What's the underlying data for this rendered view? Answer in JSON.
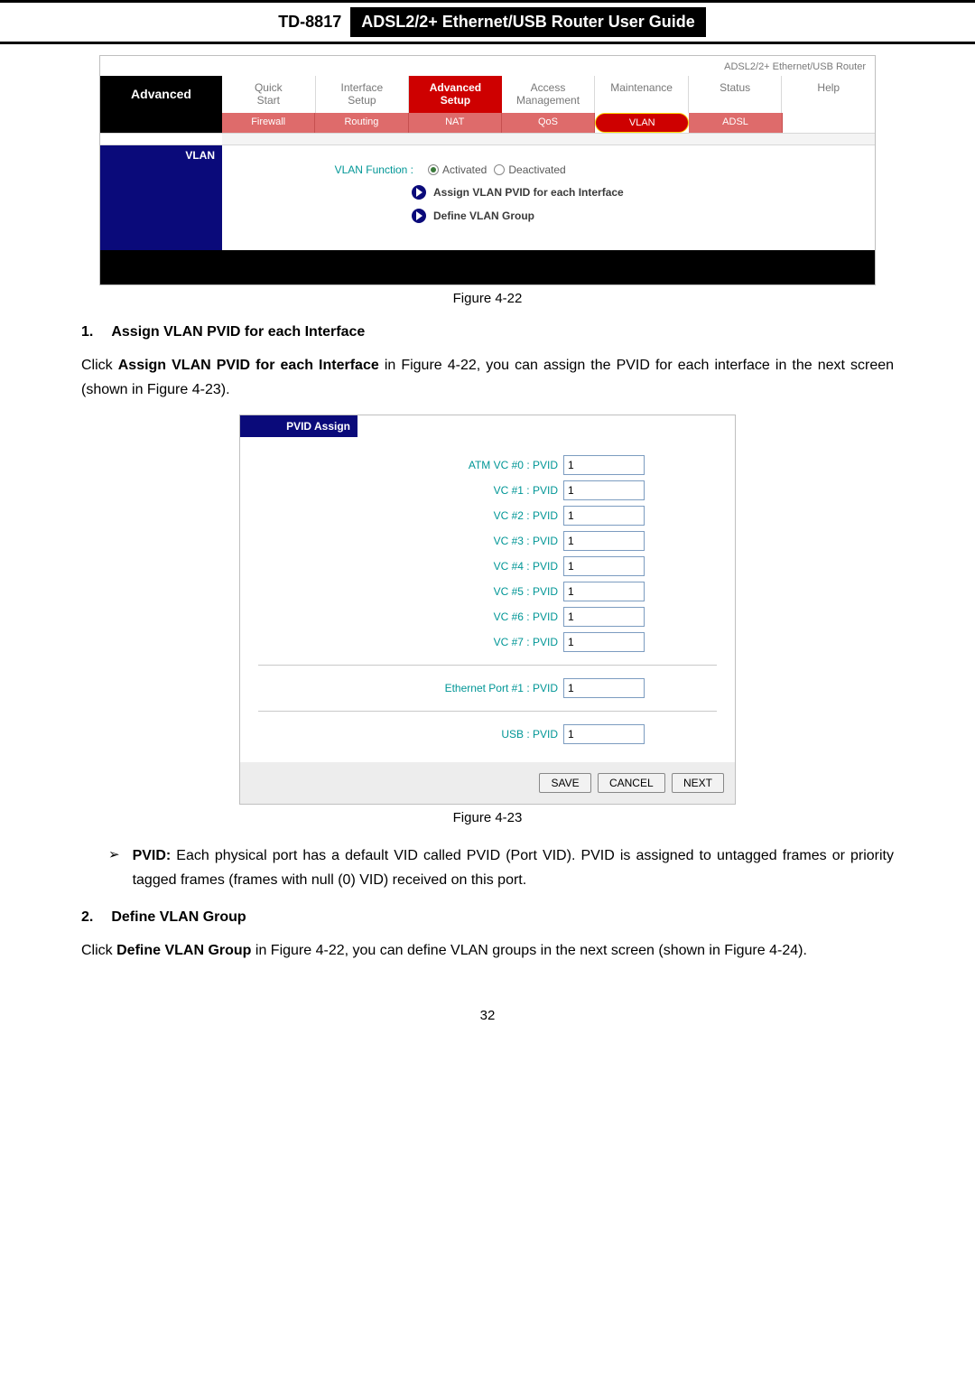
{
  "header": {
    "model": "TD-8817",
    "title": "ADSL2/2+ Ethernet/USB Router User Guide"
  },
  "screenshot1": {
    "brand": "ADSL2/2+ Ethernet/USB Router",
    "sidebar_title": "Advanced",
    "tabs": [
      "Quick\nStart",
      "Interface\nSetup",
      "Advanced\nSetup",
      "Access\nManagement",
      "Maintenance",
      "Status",
      "Help"
    ],
    "active_tab_index": 2,
    "subtabs": [
      "Firewall",
      "Routing",
      "NAT",
      "QoS",
      "VLAN",
      "ADSL"
    ],
    "active_subtab_index": 4,
    "section_label": "VLAN",
    "vlan_function_label": "VLAN Function :",
    "radio_activated": "Activated",
    "radio_deactivated": "Deactivated",
    "link1": "Assign VLAN PVID for each Interface",
    "link2": "Define VLAN Group"
  },
  "fig1_caption": "Figure 4-22",
  "h1_num": "1.",
  "h1_text": "Assign VLAN PVID for each Interface",
  "p1_a": "Click ",
  "p1_b": "Assign VLAN PVID for each Interface",
  "p1_c": " in Figure 4-22, you can assign the PVID for each interface in the next screen (shown in Figure 4-23).",
  "screenshot2": {
    "header": "PVID Assign",
    "rows": [
      {
        "label": "ATM VC #0 : PVID",
        "value": "1"
      },
      {
        "label": "VC #1 : PVID",
        "value": "1"
      },
      {
        "label": "VC #2 : PVID",
        "value": "1"
      },
      {
        "label": "VC #3 : PVID",
        "value": "1"
      },
      {
        "label": "VC #4 : PVID",
        "value": "1"
      },
      {
        "label": "VC #5 : PVID",
        "value": "1"
      },
      {
        "label": "VC #6 : PVID",
        "value": "1"
      },
      {
        "label": "VC #7 : PVID",
        "value": "1"
      }
    ],
    "eth_row": {
      "label": "Ethernet Port #1 : PVID",
      "value": "1"
    },
    "usb_row": {
      "label": "USB : PVID",
      "value": "1"
    },
    "buttons": [
      "SAVE",
      "CANCEL",
      "NEXT"
    ]
  },
  "fig2_caption": "Figure 4-23",
  "bullet_label": "PVID:",
  "bullet_text": " Each physical port has a default VID called PVID (Port VID). PVID is assigned to untagged frames or priority tagged frames (frames with null (0) VID) received on this port.",
  "h2_num": "2.",
  "h2_text": "Define VLAN Group",
  "p2_a": "Click ",
  "p2_b": "Define VLAN Group",
  "p2_c": " in Figure 4-22, you can define VLAN groups in the next screen (shown in Figure 4-24).",
  "page_number": "32"
}
